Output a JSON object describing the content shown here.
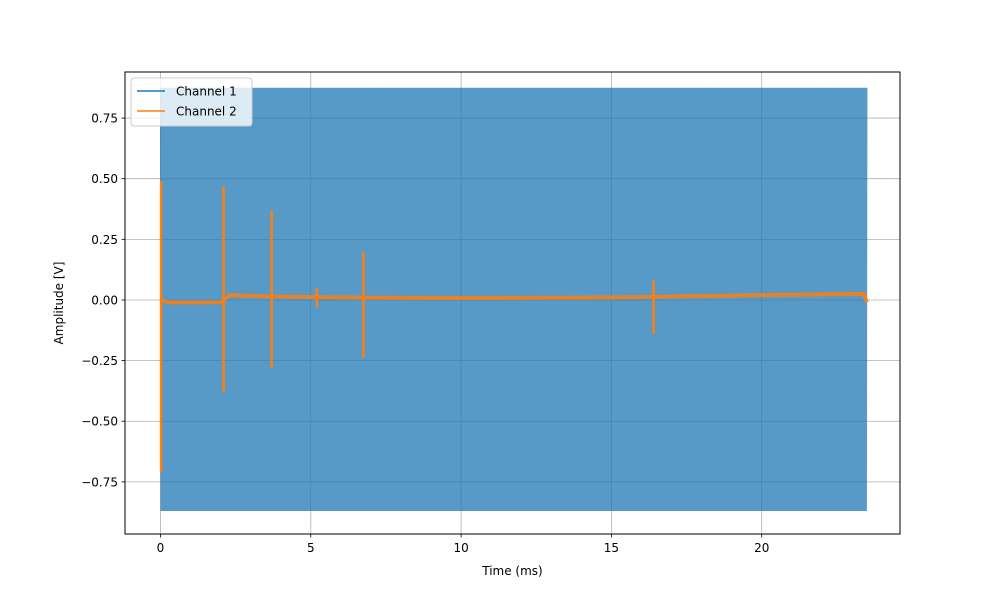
{
  "chart_data": {
    "type": "line",
    "title": "",
    "xlabel": "Time (ms)",
    "ylabel": "Amplitude [V]",
    "xlim": [
      -1.18,
      24.6
    ],
    "ylim": [
      -0.965,
      0.94
    ],
    "xticks": [
      0,
      5,
      10,
      15,
      20
    ],
    "yticks": [
      -0.75,
      -0.5,
      -0.25,
      0.0,
      0.25,
      0.5,
      0.75
    ],
    "xtick_labels": [
      "0",
      "5",
      "10",
      "15",
      "20"
    ],
    "ytick_labels": [
      "−0.75",
      "−0.50",
      "−0.25",
      "0.00",
      "0.25",
      "0.50",
      "0.75"
    ],
    "grid": true,
    "legend_position": "top-left",
    "series": [
      {
        "name": "Channel 1",
        "color": "#1f77b4",
        "signal": "oscillation",
        "amplitude": 0.875,
        "x_range": [
          0,
          23.5
        ],
        "envelope_max": 0.875,
        "envelope_min": -0.87
      },
      {
        "name": "Channel 2",
        "color": "#ff7f0e",
        "signal": "baseline with transient spikes",
        "x_range": [
          0,
          23.5
        ],
        "baseline": [
          [
            0,
            0.0
          ],
          [
            0.3,
            -0.01
          ],
          [
            2.0,
            -0.01
          ],
          [
            2.3,
            0.02
          ],
          [
            3.5,
            0.015
          ],
          [
            6.0,
            0.01
          ],
          [
            10,
            0.008
          ],
          [
            15,
            0.01
          ],
          [
            20,
            0.02
          ],
          [
            23.4,
            0.025
          ],
          [
            23.5,
            -0.01
          ]
        ],
        "spikes": [
          {
            "x": 0.02,
            "max": 0.49,
            "min": -0.71
          },
          {
            "x": 2.1,
            "max": 0.47,
            "min": -0.38
          },
          {
            "x": 3.7,
            "max": 0.37,
            "min": -0.28
          },
          {
            "x": 5.2,
            "max": 0.05,
            "min": -0.03
          },
          {
            "x": 6.75,
            "max": 0.2,
            "min": -0.24
          },
          {
            "x": 16.4,
            "max": 0.08,
            "min": -0.14
          }
        ]
      }
    ]
  }
}
